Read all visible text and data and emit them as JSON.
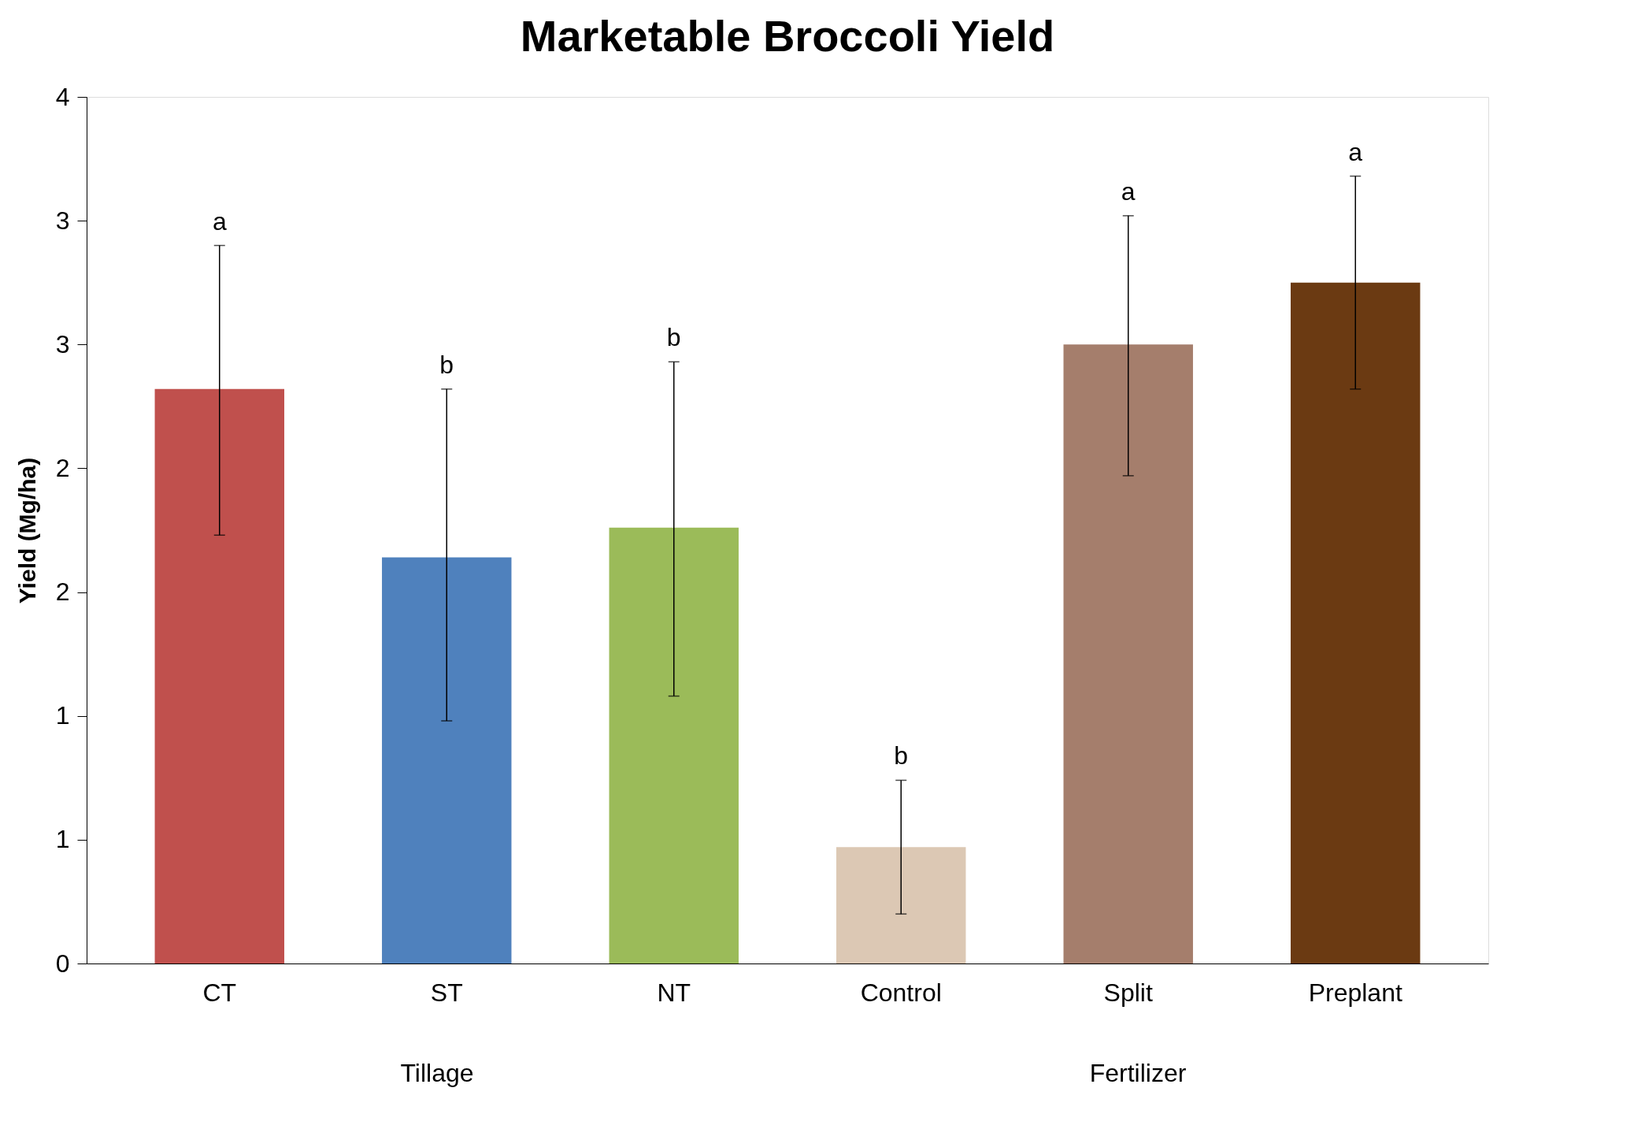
{
  "chart_data": {
    "type": "bar",
    "title": "Marketable Broccoli Yield",
    "ylabel": "Yield (Mg/ha)",
    "categories": [
      "CT",
      "ST",
      "NT",
      "Control",
      "Split",
      "Preplant"
    ],
    "values": [
      2.32,
      1.64,
      1.76,
      0.47,
      2.5,
      2.75
    ],
    "colors": [
      "#c0504d",
      "#4f81bd",
      "#9bbb59",
      "#dcc8b4",
      "#a57e6c",
      "#6b3a12"
    ],
    "errors": [
      [
        1.73,
        2.9
      ],
      [
        0.98,
        2.32
      ],
      [
        1.08,
        2.43
      ],
      [
        0.2,
        0.74
      ],
      [
        1.97,
        3.02
      ],
      [
        2.32,
        3.18
      ]
    ],
    "ylim": [
      0,
      3.5
    ],
    "yticks": [
      0,
      {
        "value": 0.5,
        "label": "1"
      },
      1,
      {
        "value": 1.5,
        "label": "2"
      },
      2,
      {
        "value": 2.5,
        "label": "3"
      },
      3,
      {
        "value": 3.5,
        "label": "4"
      }
    ],
    "grid": false,
    "legend": false,
    "annotations": [
      {
        "text": "a",
        "x": "CT",
        "y": 2.9
      },
      {
        "text": "b",
        "x": "ST",
        "y": 2.32
      },
      {
        "text": "b",
        "x": "NT",
        "y": 2.43
      },
      {
        "text": "b",
        "x": "Control",
        "y": 0.74
      },
      {
        "text": "a",
        "x": "Split",
        "y": 3.02
      },
      {
        "text": "a",
        "x": "Preplant",
        "y": 3.18
      },
      "Tillage",
      "Fertilizer"
    ]
  }
}
